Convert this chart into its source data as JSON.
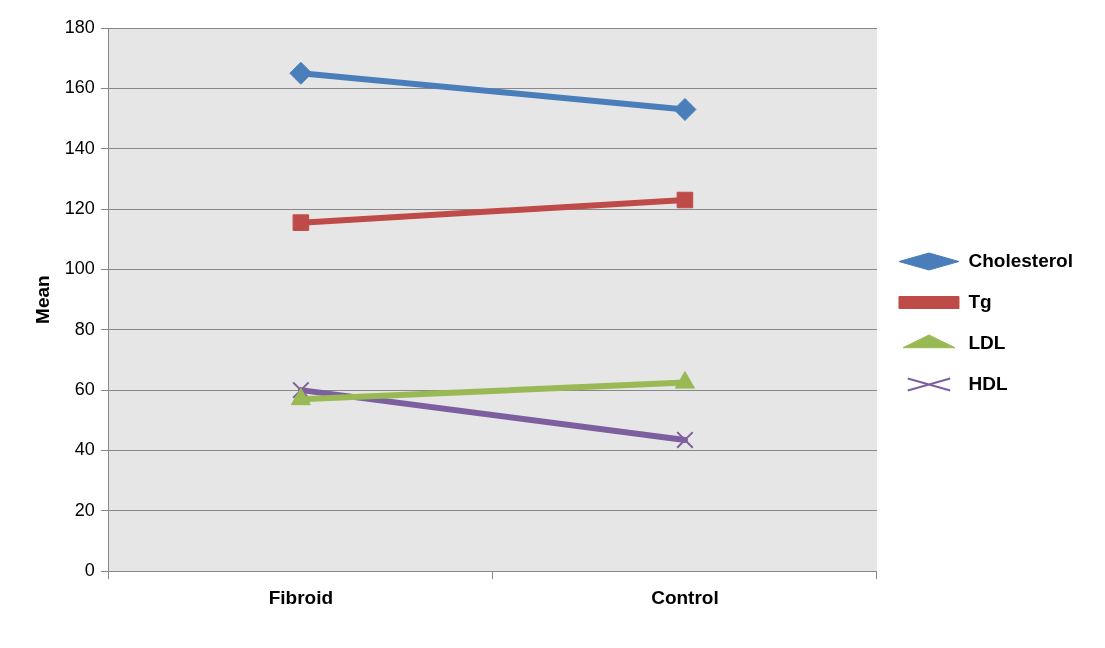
{
  "chart_data": {
    "type": "line",
    "ylabel": "Mean",
    "categories": [
      "Fibroid",
      "Control"
    ],
    "series": [
      {
        "name": "Cholesterol",
        "color": "#4a7ebb",
        "values": [
          165,
          153
        ],
        "marker": "diamond"
      },
      {
        "name": "Tg",
        "color": "#be4b48",
        "values": [
          115.5,
          123
        ],
        "marker": "square"
      },
      {
        "name": "LDL",
        "color": "#98b954",
        "values": [
          57,
          62.5
        ],
        "marker": "triangle"
      },
      {
        "name": "HDL",
        "color": "#7d5fa0",
        "values": [
          60,
          43.5
        ],
        "marker": "cross"
      }
    ],
    "ylim": [
      0,
      180
    ],
    "yticks": [
      0,
      20,
      40,
      60,
      80,
      100,
      120,
      140,
      160,
      180
    ],
    "grid": "y",
    "legend": "right"
  }
}
